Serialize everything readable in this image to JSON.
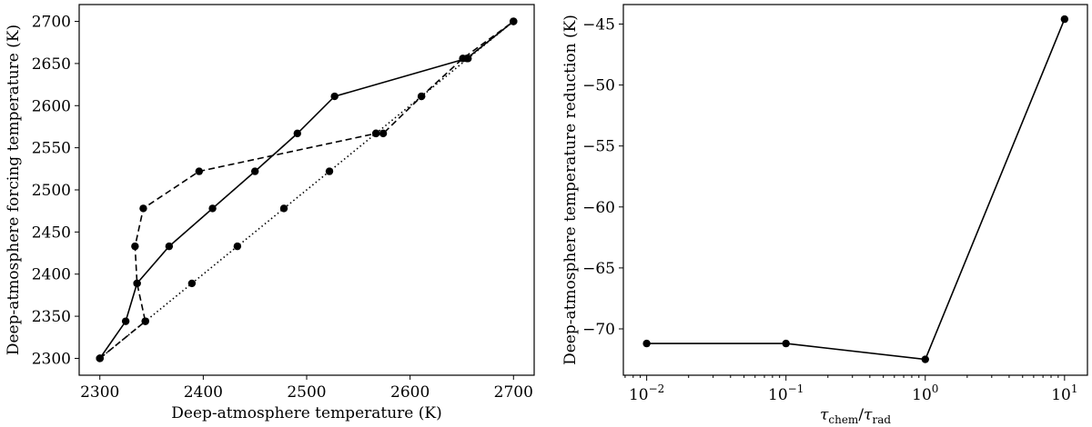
{
  "chart_data": [
    {
      "type": "line",
      "xlabel": "Deep-atmosphere temperature (K)",
      "ylabel": "Deep-atmosphere forcing temperature (K)",
      "xlim": [
        2280,
        2720
      ],
      "ylim": [
        2280,
        2720
      ],
      "xticks": [
        "2300",
        "2400",
        "2500",
        "2600",
        "2700"
      ],
      "yticks": [
        "2300",
        "2350",
        "2400",
        "2450",
        "2500",
        "2550",
        "2600",
        "2650",
        "2700"
      ],
      "grid": false,
      "series": [
        {
          "style": "solid",
          "color": "#000000",
          "x": [
            2300,
            2325,
            2336,
            2367,
            2409,
            2450,
            2491,
            2527,
            2655,
            2700
          ],
          "y": [
            2300,
            2344,
            2389,
            2433,
            2478,
            2522,
            2567,
            2611,
            2656,
            2700
          ]
        },
        {
          "style": "dashed",
          "color": "#000000",
          "x": [
            2300,
            2344,
            2336,
            2334,
            2342,
            2396,
            2567,
            2574,
            2611,
            2651,
            2700
          ],
          "y": [
            2300,
            2344,
            2389,
            2433,
            2478,
            2522,
            2567,
            2567,
            2611,
            2656,
            2700
          ]
        },
        {
          "style": "dotted",
          "color": "#000000",
          "x": [
            2300,
            2344,
            2389,
            2433,
            2478,
            2522,
            2567,
            2611,
            2656,
            2700
          ],
          "y": [
            2300,
            2344,
            2389,
            2433,
            2478,
            2522,
            2567,
            2611,
            2656,
            2700
          ]
        }
      ]
    },
    {
      "type": "line",
      "xlabel": "τchem/τrad",
      "ylabel": "Deep-atmosphere temperature reduction (K)",
      "xscale": "log",
      "xlim": [
        0.0068,
        14.6
      ],
      "ylim": [
        -73.8,
        -43.4
      ],
      "xticks": [
        0.01,
        0.1,
        1,
        10
      ],
      "yticks": [
        "−45",
        "−50",
        "−55",
        "−60",
        "−65",
        "−70"
      ],
      "yticks_values": [
        -45,
        -50,
        -55,
        -60,
        -65,
        -70
      ],
      "grid": false,
      "series": [
        {
          "style": "solid",
          "color": "#000000",
          "x": [
            0.01,
            0.1,
            1,
            10
          ],
          "y": [
            -71.2,
            -71.2,
            -72.5,
            -44.6
          ]
        }
      ]
    }
  ]
}
